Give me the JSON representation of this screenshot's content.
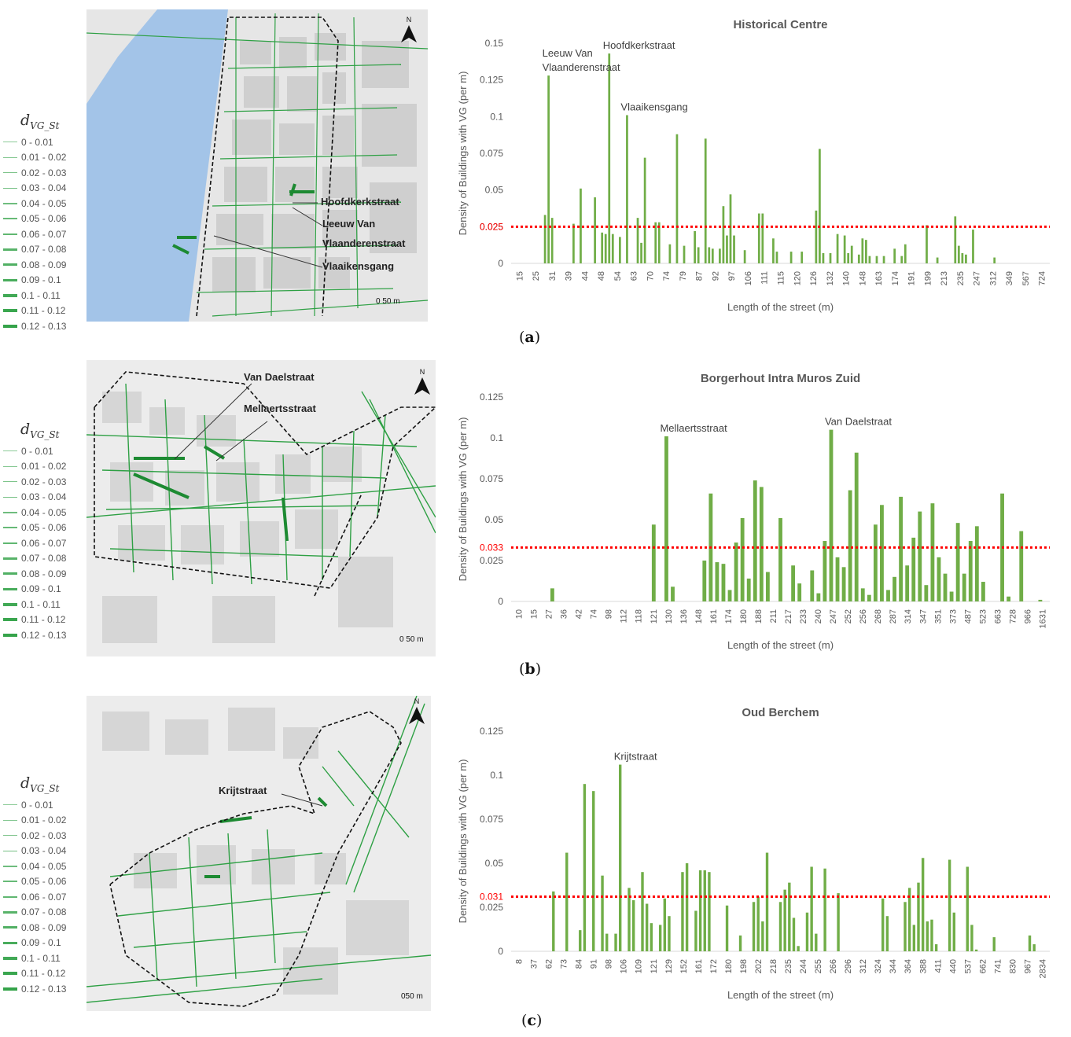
{
  "legend": {
    "title_main": "d",
    "title_sub": "VG_St",
    "items": [
      "0 - 0.01",
      "0.01 - 0.02",
      "0.02 - 0.03",
      "0.03 - 0.04",
      "0.04 - 0.05",
      "0.05 - 0.06",
      "0.06 - 0.07",
      "0.07 - 0.08",
      "0.08 - 0.09",
      "0.09 - 0.1",
      "0.1 - 0.11",
      "0.11 - 0.12",
      "0.12 - 0.13"
    ]
  },
  "colors": {
    "bar": "#70ad47",
    "threshold": "#ff0000",
    "water": "#a3c4e8",
    "street": "#2ea044",
    "block": "#cfcfcf"
  },
  "maps": [
    {
      "north": "N",
      "scale": "0   50 m",
      "labels": [
        "Hoofdkerkstraat",
        "Leeuw Van",
        "Vlaanderenstraat",
        "Vlaaikensgang"
      ]
    },
    {
      "north": "N",
      "scale": "0 50 m",
      "labels": [
        "Van Daelstraat",
        "Mellaertsstraat"
      ]
    },
    {
      "north": "N",
      "scale": "050 m",
      "labels": [
        "Krijtstraat"
      ]
    }
  ],
  "panel_labels": [
    {
      "open": "(",
      "letter": "a",
      "close": ")"
    },
    {
      "open": "(",
      "letter": "b",
      "close": ")"
    },
    {
      "open": "(",
      "letter": "c",
      "close": ")"
    }
  ],
  "chart_data": [
    {
      "type": "bar",
      "title": "Historical Centre",
      "xlabel": "Length of the street (m)",
      "ylabel": "Density of Buildings with VG (per m)",
      "ylim": [
        0,
        0.15
      ],
      "yticks": [
        "0",
        "0.025",
        "0.05",
        "0.075",
        "0.1",
        "0.125",
        "0.15"
      ],
      "ytick_values": [
        0,
        0.025,
        0.05,
        0.075,
        0.1,
        0.125,
        0.15
      ],
      "threshold": 0.025,
      "threshold_label": "0.025",
      "xtick_labels": [
        "15",
        "25",
        "31",
        "39",
        "44",
        "48",
        "54",
        "63",
        "70",
        "74",
        "79",
        "87",
        "92",
        "97",
        "106",
        "111",
        "115",
        "120",
        "126",
        "132",
        "140",
        "148",
        "163",
        "174",
        "191",
        "199",
        "213",
        "235",
        "247",
        "312",
        "349",
        "567",
        "724"
      ],
      "values": [
        0,
        0,
        0,
        0,
        0,
        0,
        0,
        0,
        0,
        0.033,
        0.128,
        0.031,
        0,
        0,
        0,
        0,
        0,
        0.027,
        0,
        0.051,
        0,
        0,
        0,
        0.045,
        0,
        0.021,
        0.02,
        0.143,
        0.02,
        0,
        0.018,
        0,
        0.101,
        0,
        0,
        0.031,
        0.014,
        0.072,
        0,
        0,
        0.028,
        0.028,
        0,
        0,
        0.013,
        0,
        0.088,
        0,
        0.012,
        0,
        0,
        0.022,
        0.011,
        0,
        0.085,
        0.011,
        0.01,
        0,
        0.01,
        0.039,
        0.019,
        0.047,
        0.019,
        0,
        0,
        0.009,
        0,
        0,
        0,
        0.034,
        0.034,
        0,
        0,
        0.017,
        0.008,
        0,
        0,
        0,
        0.008,
        0,
        0,
        0.008,
        0,
        0,
        0,
        0.036,
        0.078,
        0.007,
        0,
        0.007,
        0,
        0.02,
        0,
        0.019,
        0.007,
        0.012,
        0,
        0.006,
        0.017,
        0.016,
        0.005,
        0,
        0.005,
        0,
        0.005,
        0,
        0,
        0.01,
        0,
        0.005,
        0.013,
        0,
        0,
        0,
        0,
        0,
        0.026,
        0,
        0,
        0.004,
        0,
        0,
        0,
        0,
        0.032,
        0.012,
        0.007,
        0.006,
        0,
        0.023,
        0,
        0,
        0,
        0,
        0,
        0.004,
        0,
        0,
        0,
        0,
        0,
        0,
        0,
        0,
        0,
        0,
        0,
        0,
        0,
        0,
        0
      ],
      "annotations": [
        {
          "text": "Leeuw Van",
          "x": 10
        },
        {
          "text": "Vlaanderenstraat",
          "x": 10
        },
        {
          "text": "Hoofdkerkstraat",
          "x": 27
        },
        {
          "text": "Vlaaikensgang",
          "x": 32
        }
      ]
    },
    {
      "type": "bar",
      "title": "Borgerhout Intra Muros Zuid",
      "xlabel": "Length of the street (m)",
      "ylabel": "Density of Buildings with VG (per m)",
      "ylim": [
        0,
        0.125
      ],
      "yticks": [
        "0",
        "0.025",
        "0.05",
        "0.075",
        "0.1",
        "0.125"
      ],
      "ytick_values": [
        0,
        0.025,
        0.05,
        0.075,
        0.1,
        0.125
      ],
      "threshold": 0.033,
      "threshold_label": "0.033",
      "xtick_labels": [
        "10",
        "15",
        "27",
        "36",
        "42",
        "74",
        "98",
        "112",
        "118",
        "121",
        "130",
        "136",
        "148",
        "161",
        "174",
        "180",
        "188",
        "211",
        "217",
        "233",
        "240",
        "247",
        "252",
        "256",
        "268",
        "287",
        "314",
        "347",
        "351",
        "373",
        "487",
        "523",
        "663",
        "728",
        "966",
        "1631"
      ],
      "values": [
        0,
        0,
        0,
        0,
        0,
        0,
        0.008,
        0,
        0,
        0,
        0,
        0,
        0,
        0,
        0,
        0,
        0,
        0,
        0,
        0,
        0,
        0,
        0.047,
        0,
        0.101,
        0.009,
        0,
        0,
        0,
        0,
        0.025,
        0.066,
        0.024,
        0.023,
        0.007,
        0.036,
        0.051,
        0.014,
        0.074,
        0.07,
        0.018,
        0,
        0.051,
        0,
        0.022,
        0.011,
        0,
        0.019,
        0.005,
        0.037,
        0.105,
        0.027,
        0.021,
        0.068,
        0.091,
        0.008,
        0.004,
        0.047,
        0.059,
        0.007,
        0.015,
        0.064,
        0.022,
        0.039,
        0.055,
        0.01,
        0.06,
        0.027,
        0.017,
        0.006,
        0.048,
        0.017,
        0.037,
        0.046,
        0.012,
        0,
        0,
        0.066,
        0.003,
        0,
        0.043,
        0,
        0,
        0.001,
        0
      ],
      "annotations": [
        {
          "text": "Mellaertsstraat",
          "x": 24
        },
        {
          "text": "Van Daelstraat",
          "x": 50
        }
      ]
    },
    {
      "type": "bar",
      "title": "Oud Berchem",
      "xlabel": "Length of the street (m)",
      "ylabel": "Density of Buildings with VG (per m)",
      "ylim": [
        0,
        0.125
      ],
      "yticks": [
        "0",
        "0.025",
        "0.05",
        "0.075",
        "0.1",
        "0.125"
      ],
      "ytick_values": [
        0,
        0.025,
        0.05,
        0.075,
        0.1,
        0.125
      ],
      "threshold": 0.031,
      "threshold_label": "0.031",
      "xtick_labels": [
        "8",
        "37",
        "62",
        "73",
        "84",
        "91",
        "98",
        "106",
        "109",
        "121",
        "129",
        "152",
        "161",
        "172",
        "180",
        "198",
        "202",
        "218",
        "235",
        "244",
        "255",
        "266",
        "296",
        "312",
        "324",
        "344",
        "364",
        "388",
        "411",
        "440",
        "537",
        "662",
        "741",
        "830",
        "967",
        "2834"
      ],
      "values": [
        0,
        0,
        0,
        0,
        0,
        0,
        0,
        0,
        0,
        0.034,
        0,
        0,
        0.056,
        0,
        0,
        0.012,
        0.095,
        0,
        0.091,
        0,
        0.043,
        0.01,
        0,
        0.01,
        0.106,
        0,
        0.036,
        0.029,
        0,
        0.045,
        0.027,
        0.016,
        0,
        0.015,
        0.03,
        0.02,
        0,
        0,
        0.045,
        0.05,
        0,
        0.023,
        0.046,
        0.046,
        0.045,
        0,
        0,
        0,
        0.026,
        0,
        0,
        0.009,
        0,
        0,
        0.028,
        0.031,
        0.017,
        0.056,
        0,
        0,
        0.028,
        0.035,
        0.039,
        0.019,
        0.003,
        0,
        0.022,
        0.048,
        0.01,
        0,
        0.047,
        0,
        0,
        0.033,
        0,
        0,
        0,
        0,
        0,
        0,
        0,
        0,
        0,
        0.03,
        0.02,
        0,
        0,
        0,
        0.028,
        0.036,
        0.015,
        0.039,
        0.053,
        0.017,
        0.018,
        0.004,
        0,
        0,
        0.052,
        0.022,
        0,
        0,
        0.048,
        0.015,
        0.001,
        0,
        0,
        0,
        0.008,
        0,
        0,
        0,
        0,
        0,
        0,
        0,
        0.009,
        0.004,
        0,
        0,
        0
      ],
      "annotations": [
        {
          "text": "Krijtstraat",
          "x": 24
        }
      ]
    }
  ]
}
